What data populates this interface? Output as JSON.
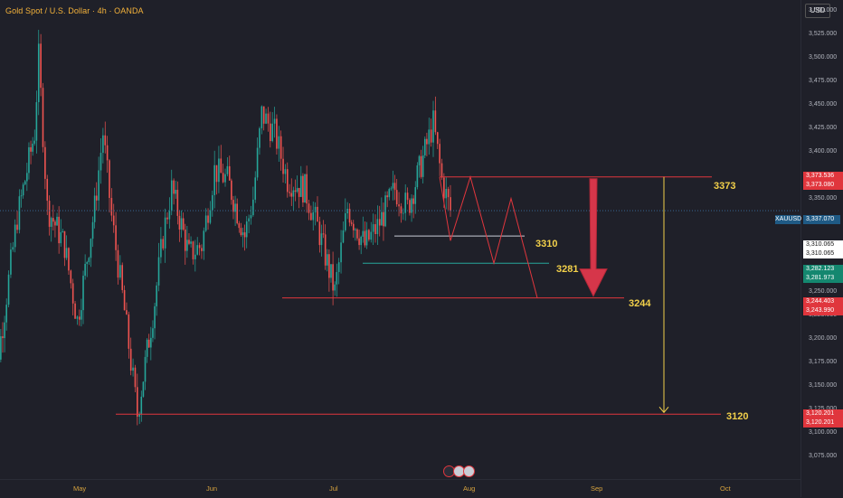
{
  "title": "Gold Spot / U.S. Dollar · 4h · OANDA",
  "currency": "USD",
  "symbol": "XAUUSD",
  "current_price": "3,337.070",
  "price_ticks": [
    "3,550.000",
    "3,525.000",
    "3,500.000",
    "3,475.000",
    "3,450.000",
    "3,425.000",
    "3,400.000",
    "3,375.000",
    "3,350.000",
    "3,325.000",
    "3,300.000",
    "3,275.000",
    "3,250.000",
    "3,225.000",
    "3,200.000",
    "3,175.000",
    "3,150.000",
    "3,125.000",
    "3,100.000",
    "3,075.000"
  ],
  "month_labels": [
    "May",
    "Jun",
    "Jul",
    "Aug",
    "Sep",
    "Oct"
  ],
  "levels": [
    "3373",
    "3310",
    "3281",
    "3244",
    "3120"
  ],
  "price_tags": [
    {
      "text": "3,373.536",
      "color": "#e0363d"
    },
    {
      "text": "3,373.080",
      "color": "#e0363d"
    },
    {
      "text": "3,310.065",
      "color": "#ffffff"
    },
    {
      "text": "3,310.065",
      "color": "#ffffff"
    },
    {
      "text": "3,282.123",
      "color": "#14876f"
    },
    {
      "text": "3,281.973",
      "color": "#14876f"
    },
    {
      "text": "3,244.403",
      "color": "#e0363d"
    },
    {
      "text": "3,243.990",
      "color": "#e0363d"
    },
    {
      "text": "3,120.201",
      "color": "#e0363d"
    },
    {
      "text": "3,120.201",
      "color": "#e0363d"
    }
  ],
  "chart_data": {
    "type": "candlestick",
    "symbol": "XAUUSD",
    "timeframe": "4h",
    "ylim": [
      3060,
      3565
    ],
    "series": [
      {
        "date": "2025-04-10",
        "close": 3100
      },
      {
        "date": "2025-04-14",
        "close": 3230
      },
      {
        "date": "2025-04-17",
        "close": 3330
      },
      {
        "date": "2025-04-21",
        "close": 3420
      },
      {
        "date": "2025-04-22",
        "close": 3500
      },
      {
        "date": "2025-04-24",
        "close": 3340
      },
      {
        "date": "2025-04-28",
        "close": 3300
      },
      {
        "date": "2025-05-01",
        "close": 3220
      },
      {
        "date": "2025-05-05",
        "close": 3340
      },
      {
        "date": "2025-05-07",
        "close": 3420
      },
      {
        "date": "2025-05-09",
        "close": 3330
      },
      {
        "date": "2025-05-12",
        "close": 3230
      },
      {
        "date": "2025-05-15",
        "close": 3120
      },
      {
        "date": "2025-05-19",
        "close": 3240
      },
      {
        "date": "2025-05-21",
        "close": 3310
      },
      {
        "date": "2025-05-23",
        "close": 3360
      },
      {
        "date": "2025-05-27",
        "close": 3290
      },
      {
        "date": "2025-05-30",
        "close": 3300
      },
      {
        "date": "2025-06-02",
        "close": 3380
      },
      {
        "date": "2025-06-05",
        "close": 3370
      },
      {
        "date": "2025-06-09",
        "close": 3310
      },
      {
        "date": "2025-06-11",
        "close": 3350
      },
      {
        "date": "2025-06-13",
        "close": 3440
      },
      {
        "date": "2025-06-16",
        "close": 3420
      },
      {
        "date": "2025-06-19",
        "close": 3370
      },
      {
        "date": "2025-06-23",
        "close": 3360
      },
      {
        "date": "2025-06-26",
        "close": 3320
      },
      {
        "date": "2025-06-30",
        "close": 3250
      },
      {
        "date": "2025-07-03",
        "close": 3340
      },
      {
        "date": "2025-07-07",
        "close": 3300
      },
      {
        "date": "2025-07-10",
        "close": 3320
      },
      {
        "date": "2025-07-14",
        "close": 3360
      },
      {
        "date": "2025-07-17",
        "close": 3340
      },
      {
        "date": "2025-07-21",
        "close": 3400
      },
      {
        "date": "2025-07-23",
        "close": 3430
      },
      {
        "date": "2025-07-25",
        "close": 3370
      },
      {
        "date": "2025-07-27",
        "close": 3337
      }
    ],
    "horizontal_levels": [
      3373,
      3310,
      3281,
      3244,
      3120
    ],
    "projection_path": [
      {
        "date": "2025-07-27",
        "price": 3373
      },
      {
        "date": "2025-07-29",
        "price": 3310
      },
      {
        "date": "2025-08-01",
        "price": 3373
      },
      {
        "date": "2025-08-05",
        "price": 3281
      },
      {
        "date": "2025-08-09",
        "price": 3350
      },
      {
        "date": "2025-08-15",
        "price": 3244
      }
    ],
    "arrow_big_red": {
      "from": 3373,
      "to": 3244
    },
    "arrow_yellow": {
      "from": 3373,
      "to": 3120
    },
    "grid": false
  }
}
